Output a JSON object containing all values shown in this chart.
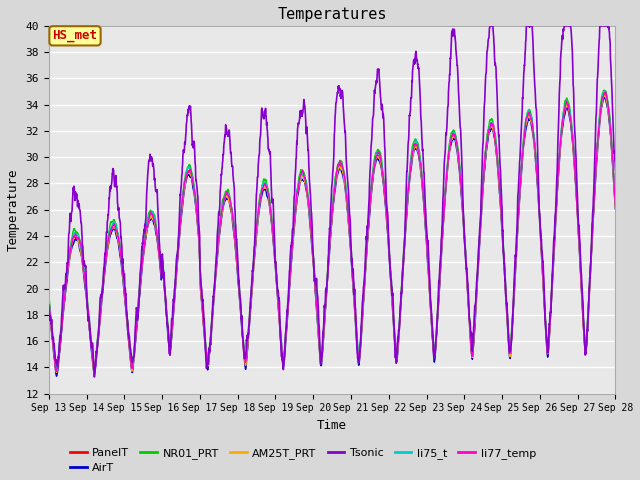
{
  "title": "Temperatures",
  "xlabel": "Time",
  "ylabel": "Temperature",
  "ylim": [
    12,
    40
  ],
  "yticks": [
    12,
    14,
    16,
    18,
    20,
    22,
    24,
    26,
    28,
    30,
    32,
    34,
    36,
    38,
    40
  ],
  "annotation_text": "HS_met",
  "annotation_color": "#cc0000",
  "annotation_bg": "#ffff99",
  "annotation_border": "#996600",
  "series": [
    "PanelT",
    "AirT",
    "NR01_PRT",
    "AM25T_PRT",
    "Tsonic",
    "li75_t",
    "li77_temp"
  ],
  "colors": {
    "PanelT": "#ff0000",
    "AirT": "#0000cc",
    "NR01_PRT": "#00cc00",
    "AM25T_PRT": "#ffaa00",
    "Tsonic": "#8800cc",
    "li75_t": "#00cccc",
    "li77_temp": "#ff00cc"
  },
  "linewidths": {
    "PanelT": 1.0,
    "AirT": 1.0,
    "NR01_PRT": 1.0,
    "AM25T_PRT": 1.0,
    "Tsonic": 1.2,
    "li75_t": 1.0,
    "li77_temp": 1.0
  },
  "x_start_day": 13,
  "x_end_day": 28,
  "x_ticks": [
    13,
    14,
    15,
    16,
    17,
    18,
    19,
    20,
    21,
    22,
    23,
    24,
    25,
    26,
    27,
    28
  ],
  "x_tick_labels": [
    "Sep 13",
    "Sep 14",
    "Sep 15",
    "Sep 16",
    "Sep 17",
    "Sep 18",
    "Sep 19",
    "Sep 20",
    "Sep 21",
    "Sep 22",
    "Sep 23",
    "Sep 24",
    "Sep 25",
    "Sep 26",
    "Sep 27",
    "Sep 28"
  ],
  "bg_color": "#d8d8d8",
  "plot_bg_color": "#e8e8e8",
  "grid_color": "#ffffff",
  "font_family": "monospace",
  "figsize": [
    6.4,
    4.8
  ],
  "dpi": 100
}
